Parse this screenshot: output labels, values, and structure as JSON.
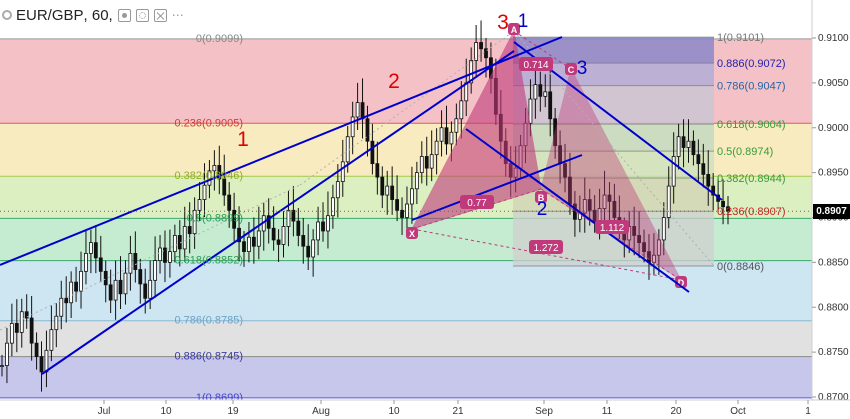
{
  "header": {
    "symbol": "EUR/GBP",
    "interval": "60"
  },
  "current_price": {
    "value": 0.8907,
    "label": "0.8907"
  },
  "colors": {
    "candles": "#111111",
    "channel": "#0000cc",
    "pattern_fill": "#c0397b",
    "fib_badge": "#c0397b",
    "wave_red": "#e00000",
    "wave_blue": "#0000cc",
    "price_tag_bg": "#000000"
  },
  "chart_data": {
    "type": "line",
    "title": "",
    "xlabel": "",
    "ylabel": "",
    "ylim": [
      0.8699,
      0.9119
    ],
    "x_ticks": [
      "Jul",
      "10",
      "19",
      "Aug",
      "10",
      "21",
      "Sep",
      "11",
      "20",
      "Oct",
      "1"
    ],
    "y_ticks": [
      "0.9100",
      "0.9050",
      "0.9000",
      "0.8950",
      "0.8900",
      "0.8850",
      "0.8800",
      "0.8750",
      "0.8700"
    ],
    "grid": false,
    "series": [
      {
        "values": [
          0.8735,
          0.876,
          0.8782,
          0.8772,
          0.8795,
          0.8788,
          0.876,
          0.8745,
          0.8728,
          0.8752,
          0.8775,
          0.879,
          0.881,
          0.8805,
          0.8828,
          0.8818,
          0.884,
          0.886,
          0.8872,
          0.8855,
          0.884,
          0.8825,
          0.8808,
          0.883,
          0.8815,
          0.8838,
          0.886,
          0.8842,
          0.8826,
          0.881,
          0.883,
          0.8852,
          0.8866,
          0.885,
          0.8862,
          0.888,
          0.8865,
          0.889,
          0.8882,
          0.8908,
          0.892,
          0.8936,
          0.8952,
          0.8958,
          0.8943,
          0.8925,
          0.8908,
          0.8888,
          0.8873,
          0.8862,
          0.8878,
          0.8868,
          0.8885,
          0.8902,
          0.8888,
          0.8875,
          0.887,
          0.889,
          0.8908,
          0.8896,
          0.888,
          0.8868,
          0.8856,
          0.8875,
          0.8895,
          0.8885,
          0.8902,
          0.8922,
          0.894,
          0.8962,
          0.899,
          0.9012,
          0.9028,
          0.901,
          0.8985,
          0.896,
          0.8945,
          0.8925,
          0.8935,
          0.892,
          0.8908,
          0.89,
          0.8915,
          0.8932,
          0.895,
          0.8968,
          0.8955,
          0.897,
          0.8985,
          0.9,
          0.8982,
          0.8995,
          0.901,
          0.903,
          0.905,
          0.9075,
          0.9095,
          0.9088,
          0.9078,
          0.9055,
          0.9015,
          0.8985,
          0.896,
          0.8945,
          0.8955,
          0.898,
          0.9005,
          0.9032,
          0.9048,
          0.9035,
          0.904,
          0.901,
          0.898,
          0.896,
          0.8945,
          0.8915,
          0.8898,
          0.8905,
          0.892,
          0.8908,
          0.8895,
          0.891,
          0.8925,
          0.8918,
          0.89,
          0.8888,
          0.8875,
          0.889,
          0.888,
          0.8872,
          0.8862,
          0.885,
          0.8858,
          0.8875,
          0.89,
          0.8935,
          0.8968,
          0.899,
          0.8978,
          0.8985,
          0.897,
          0.896,
          0.8948,
          0.8935,
          0.8925,
          0.8918,
          0.8912,
          0.8907
        ]
      }
    ],
    "fib_retracement": {
      "levels": [
        {
          "ratio": "0",
          "value": "0.9099"
        },
        {
          "ratio": "0.236",
          "value": "0.9005"
        },
        {
          "ratio": "0.382",
          "value": "0.8946"
        },
        {
          "ratio": "0.5",
          "value": "0.8899"
        },
        {
          "ratio": "0.618",
          "value": "0.8852"
        },
        {
          "ratio": "0.786",
          "value": "0.8785"
        },
        {
          "ratio": "0.886",
          "value": "0.8745"
        },
        {
          "ratio": "1",
          "value": "0.8699"
        }
      ],
      "labels": [
        "0(0.9099)",
        "0.236(0.9005)",
        "0.382(0.8946)",
        "0.5(0.8899)",
        "0.618(0.8852)",
        "0.786(0.8785)",
        "0.886(0.8745)",
        "1(0.8699)"
      ]
    },
    "fib_right": {
      "levels": [
        {
          "ratio": "1",
          "value": "0.9101"
        },
        {
          "ratio": "0.886",
          "value": "0.9072"
        },
        {
          "ratio": "0.786",
          "value": "0.9047"
        },
        {
          "ratio": "0.618",
          "value": "0.9004"
        },
        {
          "ratio": "0.5",
          "value": "0.8974"
        },
        {
          "ratio": "0.382",
          "value": "0.8944"
        },
        {
          "ratio": "0.236",
          "value": "0.8907"
        },
        {
          "ratio": "0",
          "value": "0.8846"
        }
      ],
      "labels": [
        "1(0.9101)",
        "0.886(0.9072)",
        "0.786(0.9047)",
        "0.618(0.9004)",
        "0.5(0.8974)",
        "0.382(0.8944)",
        "0.236(0.8907)",
        "0(0.8846)"
      ]
    },
    "harmonic_pattern": {
      "points": [
        "X",
        "A",
        "B",
        "C",
        "D"
      ],
      "ratios": [
        "0.714",
        "0.77",
        "1.112",
        "1.272"
      ]
    },
    "wave_labels": {
      "red": [
        "1",
        "2",
        "3"
      ],
      "blue": [
        "1",
        "2",
        "3"
      ]
    }
  }
}
